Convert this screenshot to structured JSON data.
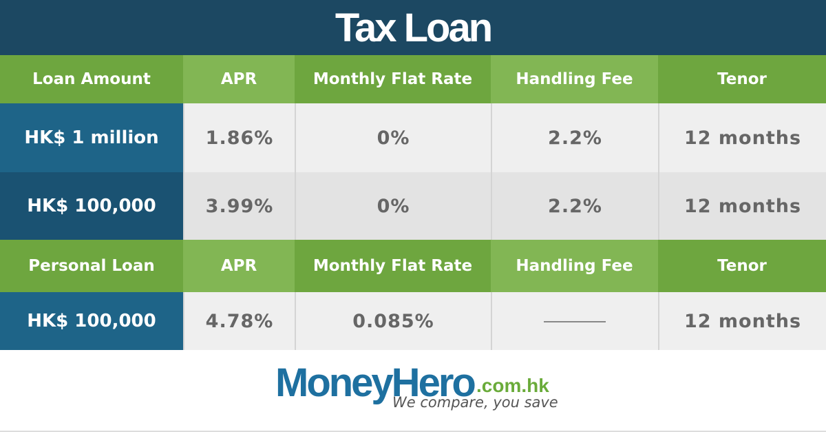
{
  "title": "Tax Loan",
  "tables": [
    {
      "header": [
        "Loan Amount",
        "APR",
        "Monthly Flat Rate",
        "Handling Fee",
        "Tenor"
      ],
      "rows": [
        [
          "HK$ 1 million",
          "1.86%",
          "0%",
          "2.2%",
          "12 months"
        ],
        [
          "HK$ 100,000",
          "3.99%",
          "0%",
          "2.2%",
          "12 months"
        ]
      ]
    },
    {
      "header": [
        "Personal Loan",
        "APR",
        "Monthly Flat Rate",
        "Handling Fee",
        "Tenor"
      ],
      "rows": [
        [
          "HK$ 100,000",
          "4.78%",
          "0.085%",
          null,
          "12 months"
        ]
      ]
    }
  ],
  "logo": {
    "name": "MoneyHero",
    "domain": ".com.hk",
    "tagline": "We compare, you save"
  }
}
